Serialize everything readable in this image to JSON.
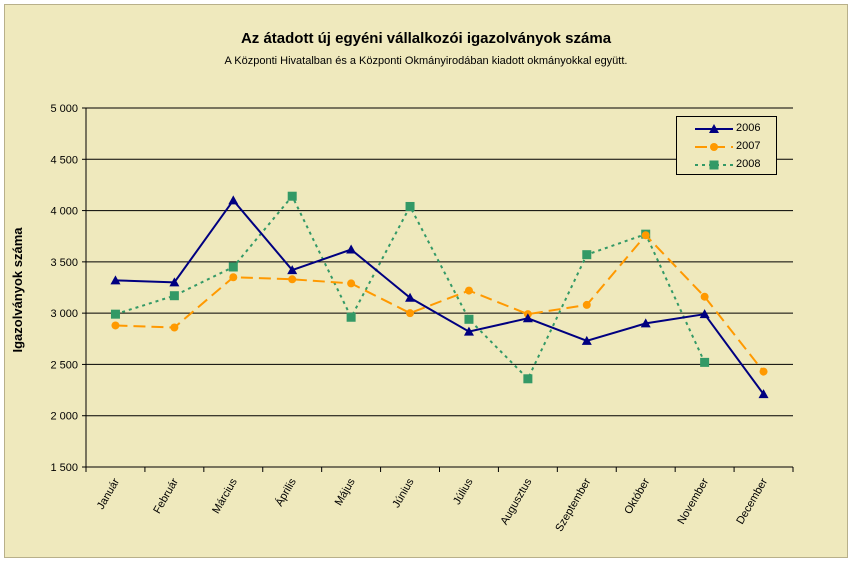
{
  "chart_data": {
    "type": "line",
    "title": "Az átadott új egyéni vállalkozói  igazolványok száma",
    "subtitle": "A Központi Hivatalban és a Központi Okmányirodában kiadott okmányokkal együtt.",
    "xlabel": "",
    "ylabel": "Igazolványok száma",
    "ylim": [
      1500,
      5000
    ],
    "yticks": [
      1500,
      2000,
      2500,
      3000,
      3500,
      4000,
      4500,
      5000
    ],
    "ytick_labels": [
      "1 500",
      "2 000",
      "2 500",
      "3 000",
      "3 500",
      "4 000",
      "4 500",
      "5 000"
    ],
    "grid": true,
    "legend_position": "top-right",
    "categories": [
      "Január",
      "Február",
      "Március",
      "Április",
      "Május",
      "Június",
      "Július",
      "Augusztus",
      "Szeptember",
      "Október",
      "November",
      "December"
    ],
    "series": [
      {
        "name": "2006",
        "color": "#000080",
        "marker": "triangle",
        "dash": "solid",
        "values": [
          3320,
          3300,
          4100,
          3420,
          3620,
          3150,
          2820,
          2950,
          2730,
          2900,
          2990,
          2210
        ]
      },
      {
        "name": "2007",
        "color": "#ff9900",
        "marker": "circle",
        "dash": "long-dash",
        "values": [
          2880,
          2860,
          3350,
          3330,
          3290,
          3000,
          3220,
          2990,
          3080,
          3760,
          3160,
          2430
        ]
      },
      {
        "name": "2008",
        "color": "#339966",
        "marker": "square",
        "dash": "dotted",
        "values": [
          2990,
          3170,
          3450,
          4140,
          2960,
          4040,
          2940,
          2360,
          3570,
          3770,
          2520,
          null
        ]
      }
    ]
  }
}
